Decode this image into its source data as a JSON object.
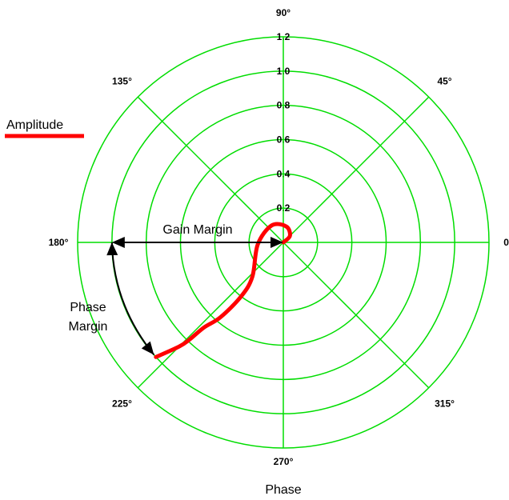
{
  "chart_data": {
    "type": "line",
    "coordinate_system": "polar",
    "radial_ticks": [
      "0.2",
      "0.4",
      "0.6",
      "0.8",
      "1.0",
      "1.2"
    ],
    "radial_values": [
      0.2,
      0.4,
      0.6,
      0.8,
      1.0,
      1.2
    ],
    "rlim": [
      0,
      1.2
    ],
    "angle_ticks": [
      {
        "deg": 0,
        "label": "0°"
      },
      {
        "deg": 45,
        "label": "45°"
      },
      {
        "deg": 90,
        "label": "90°"
      },
      {
        "deg": 135,
        "label": "135°"
      },
      {
        "deg": 180,
        "label": "180°"
      },
      {
        "deg": 225,
        "label": "225°"
      },
      {
        "deg": 270,
        "label": "270°"
      },
      {
        "deg": 315,
        "label": "315°"
      }
    ],
    "grid": true,
    "grid_color": "#00dd00",
    "xlabel": "Phase",
    "legend": {
      "position": "top-left",
      "entries": [
        {
          "name": "Amplitude",
          "color": "#ff0000"
        }
      ]
    },
    "series": [
      {
        "name": "Amplitude",
        "color": "#ff0000",
        "points": [
          {
            "r": 0.0,
            "theta": 0
          },
          {
            "r": 0.055,
            "theta": 45
          },
          {
            "r": 0.095,
            "theta": 80
          },
          {
            "r": 0.12,
            "theta": 125
          },
          {
            "r": 0.15,
            "theta": 185
          },
          {
            "r": 0.27,
            "theta": 228
          },
          {
            "r": 0.4,
            "theta": 232
          },
          {
            "r": 0.57,
            "theta": 230
          },
          {
            "r": 0.68,
            "theta": 227
          },
          {
            "r": 0.79,
            "theta": 226
          },
          {
            "r": 0.86,
            "theta": 225
          },
          {
            "r": 1.0,
            "theta": 222
          }
        ]
      }
    ],
    "annotations": [
      {
        "name": "gain-margin",
        "text": "Gain Margin",
        "from": {
          "r": 0,
          "theta": 0
        },
        "to": {
          "r": 1.0,
          "theta": 180
        }
      },
      {
        "name": "phase-margin",
        "text_lines": [
          "Phase",
          "Margin"
        ],
        "from": {
          "r": 1.0,
          "theta": 180
        },
        "to": {
          "r": 1.0,
          "theta": 221
        }
      }
    ]
  }
}
